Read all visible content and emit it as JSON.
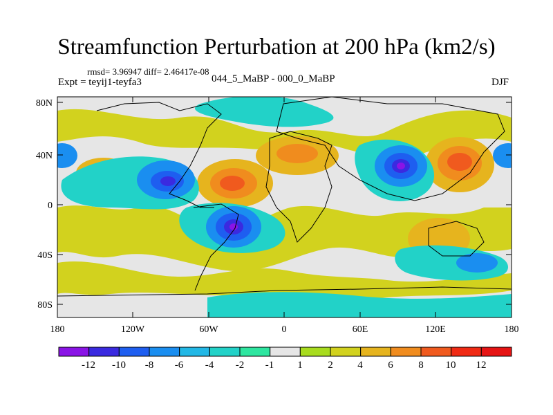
{
  "title": "Streamfunction Perturbation at 200 hPa (km2/s)",
  "stats": "rmsd= 3.96947  diff= 2.46417e-08",
  "experiment": "Expt = teyij1-teyfa3",
  "case": "044_5_MaBP - 000_0_MaBP",
  "season": "DJF",
  "y_ticks": [
    "80N",
    "40N",
    "0",
    "40S",
    "80S"
  ],
  "x_ticks": [
    "180",
    "120W",
    "60W",
    "0",
    "60E",
    "120E",
    "180"
  ],
  "colorbar": {
    "labels": [
      "-12",
      "-10",
      "-8",
      "-6",
      "-4",
      "-2",
      "-1",
      "1",
      "2",
      "4",
      "6",
      "8",
      "10",
      "12"
    ],
    "colors": [
      "#8a14e6",
      "#3a2ae0",
      "#1e5ef0",
      "#1a8ef0",
      "#22b8e6",
      "#22d2c8",
      "#2ee6a0",
      "#e6e6e6",
      "#a8dc1e",
      "#d2d21e",
      "#e6b41e",
      "#f08c1e",
      "#f05a1e",
      "#f02a14",
      "#e61414"
    ]
  }
}
